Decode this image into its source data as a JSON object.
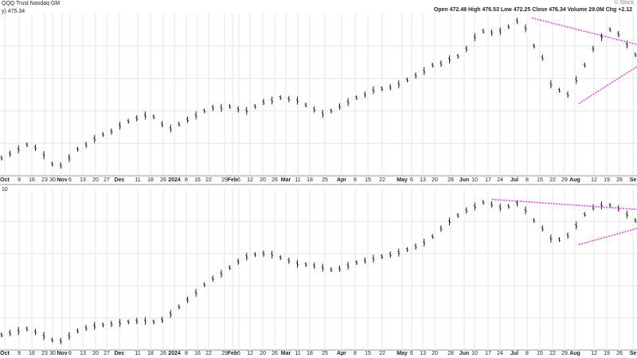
{
  "header": {
    "symbol_line": "QQQ Trust Nasdaq GM",
    "logo": "© Stock",
    "quote": {
      "open_label": "Open",
      "open": "472.48",
      "high_label": "High",
      "high": "476.53",
      "low_label": "Low",
      "low": "472.25",
      "close_label": "Close",
      "close": "476.34",
      "volume_label": "Volume",
      "volume": "29.0M",
      "chg_label": "Chg",
      "chg": "+2.12"
    }
  },
  "top_panel": {
    "label": "y) 475.34"
  },
  "bottom_panel": {
    "label": "10"
  },
  "chart_data": [
    {
      "type": "line",
      "title": "",
      "x_tick_labels": [
        "Oct",
        "9",
        "16",
        "23",
        "30",
        "Nov",
        "6",
        "13",
        "20",
        "27",
        "Dec",
        "11",
        "18",
        "26",
        "2024",
        "8",
        "16",
        "22",
        "29",
        "Feb",
        "6",
        "12",
        "20",
        "26",
        "Mar",
        "11",
        "18",
        "25",
        "Apr",
        "8",
        "15",
        "22",
        "May",
        "6",
        "13",
        "20",
        "28",
        "Jun",
        "10",
        "17",
        "24",
        "Jul",
        "8",
        "15",
        "22",
        "29",
        "Aug",
        "12",
        "19",
        "26",
        "Se"
      ],
      "series": [
        {
          "values": [
            408,
            411,
            414,
            417,
            415,
            410,
            404,
            403,
            408,
            414,
            417,
            421,
            424,
            426,
            430,
            433,
            435,
            437,
            436,
            431,
            428,
            431,
            434,
            437,
            440,
            442,
            442,
            443,
            441,
            440,
            443,
            446,
            447,
            449,
            448,
            447,
            444,
            441,
            438,
            440,
            443,
            446,
            449,
            451,
            454,
            455,
            456,
            458,
            461,
            464,
            467,
            471,
            472,
            475,
            477,
            482,
            490,
            494,
            493,
            494,
            497,
            501,
            496,
            484,
            476,
            458,
            454,
            451,
            461,
            471,
            482,
            490,
            495,
            492,
            485,
            478
          ]
        }
      ],
      "trendlines": [
        {
          "from": [
            "Jul 10",
            503
          ],
          "to": [
            "Sep 3",
            485
          ]
        },
        {
          "from": [
            "Aug 5",
            445
          ],
          "to": [
            "Sep 3",
            470
          ]
        }
      ],
      "grid": true
    },
    {
      "type": "line",
      "title": "",
      "x_tick_labels": [
        "Oct",
        "9",
        "16",
        "23",
        "30",
        "Nov",
        "6",
        "13",
        "20",
        "27",
        "Dec",
        "11",
        "18",
        "26",
        "2024",
        "8",
        "16",
        "22",
        "29",
        "Feb",
        "6",
        "12",
        "20",
        "26",
        "Mar",
        "11",
        "18",
        "25",
        "Apr",
        "8",
        "15",
        "22",
        "May",
        "6",
        "13",
        "20",
        "28",
        "Jun",
        "10",
        "17",
        "24",
        "Jul",
        "8",
        "15",
        "22",
        "29",
        "Aug",
        "12",
        "19",
        "26",
        "Se"
      ],
      "series": [
        {
          "values": [
            10,
            12,
            14,
            16,
            13,
            9,
            5,
            4,
            9,
            14,
            17,
            19,
            20,
            21,
            22,
            23,
            24,
            24,
            23,
            25,
            31,
            38,
            45,
            52,
            60,
            66,
            71,
            77,
            83,
            88,
            90,
            91,
            90,
            87,
            84,
            81,
            80,
            79,
            77,
            75,
            76,
            79,
            82,
            84,
            86,
            88,
            90,
            92,
            95,
            98,
            102,
            108,
            116,
            123,
            129,
            134,
            138,
            142,
            140,
            137,
            138,
            141,
            134,
            124,
            116,
            106,
            105,
            109,
            119,
            130,
            137,
            139,
            139,
            136,
            130,
            124
          ]
        }
      ],
      "trendlines": [
        {
          "from": [
            "Jun 17",
            145
          ],
          "to": [
            "Sep 3",
            135
          ]
        },
        {
          "from": [
            "Aug 5",
            100
          ],
          "to": [
            "Sep 3",
            116
          ]
        }
      ],
      "grid": true
    }
  ],
  "colors": {
    "price": "#222222",
    "grid": "#e6e6e6",
    "trendline": "#e040e0",
    "frame": "#999999"
  }
}
